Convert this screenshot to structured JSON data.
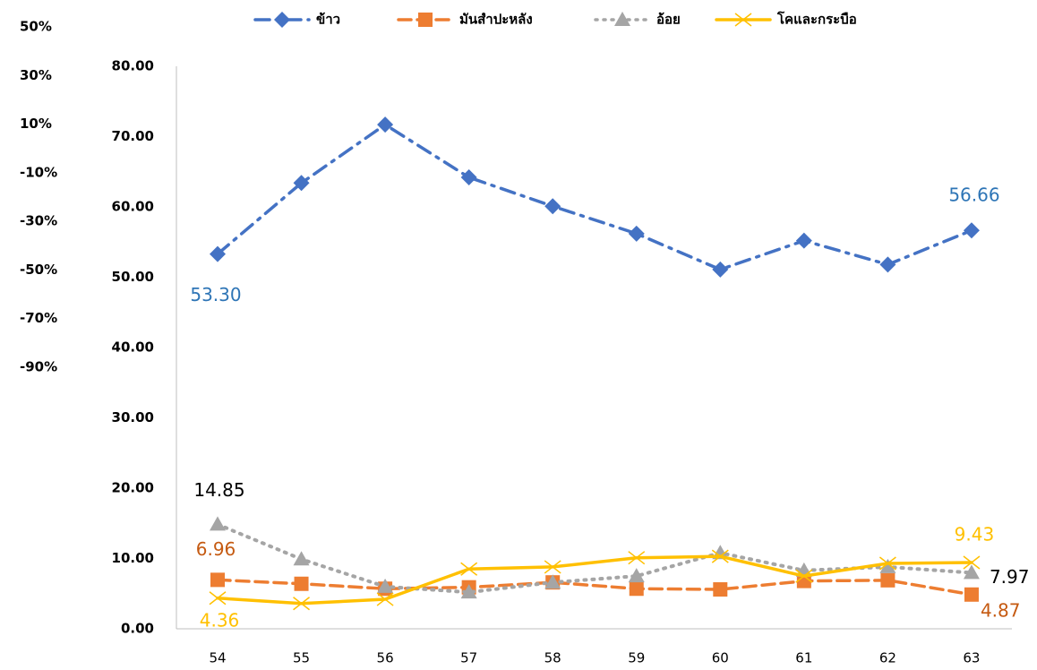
{
  "chart_data": {
    "type": "line",
    "categories": [
      "54",
      "55",
      "56",
      "57",
      "58",
      "59",
      "60",
      "61",
      "62",
      "63"
    ],
    "series": [
      {
        "name": "ข้าว",
        "color": "#4472c4",
        "dash": "dashdot",
        "marker": "diamond",
        "values": [
          53.3,
          63.4,
          71.7,
          64.2,
          60.1,
          56.2,
          51.1,
          55.2,
          51.8,
          56.66
        ],
        "value_labels": [
          "53.30",
          null,
          null,
          null,
          null,
          null,
          null,
          null,
          null,
          "56.66"
        ],
        "label_color": "#2e75b6"
      },
      {
        "name": "มันสำปะหลัง",
        "color": "#ed7d31",
        "dash": "dashed",
        "marker": "square",
        "values": [
          6.96,
          6.4,
          5.7,
          5.9,
          6.6,
          5.7,
          5.6,
          6.8,
          6.9,
          4.87
        ],
        "value_labels": [
          "6.96",
          null,
          null,
          null,
          null,
          null,
          null,
          null,
          null,
          "4.87"
        ],
        "label_color": "#c55a11"
      },
      {
        "name": "อ้อย",
        "color": "#a5a5a5",
        "dash": "dotted",
        "marker": "triangle",
        "values": [
          14.85,
          9.9,
          6.0,
          5.2,
          6.6,
          7.5,
          10.8,
          8.3,
          8.8,
          7.97
        ],
        "value_labels": [
          "14.85",
          null,
          null,
          null,
          null,
          null,
          null,
          null,
          null,
          "7.97"
        ],
        "label_color": "#000000"
      },
      {
        "name": "โคและกระบือ",
        "color": "#ffc000",
        "dash": "solid",
        "marker": "x",
        "values": [
          4.36,
          3.6,
          4.2,
          8.5,
          8.8,
          10.1,
          10.3,
          7.5,
          9.3,
          9.43
        ],
        "value_labels": [
          "4.36",
          null,
          null,
          null,
          null,
          null,
          null,
          null,
          null,
          "9.43"
        ],
        "label_color": "#ffc000"
      }
    ],
    "ylim": [
      0,
      80
    ],
    "yticks": [
      {
        "value": 0,
        "label": "0.00"
      },
      {
        "value": 10,
        "label": "10.00"
      },
      {
        "value": 20,
        "label": "20.00"
      },
      {
        "value": 30,
        "label": "30.00"
      },
      {
        "value": 40,
        "label": "40.00"
      },
      {
        "value": 50,
        "label": "50.00"
      },
      {
        "value": 60,
        "label": "60.00"
      },
      {
        "value": 70,
        "label": "70.00"
      },
      {
        "value": 80,
        "label": "80.00"
      }
    ],
    "y2lim": [
      -90,
      50
    ],
    "y2ticks": [
      {
        "value": 50,
        "label": "50%"
      },
      {
        "value": 30,
        "label": "30%"
      },
      {
        "value": 10,
        "label": "10%"
      },
      {
        "value": -10,
        "label": "-10%"
      },
      {
        "value": -30,
        "label": "-30%"
      },
      {
        "value": -50,
        "label": "-50%"
      },
      {
        "value": -70,
        "label": "-70%"
      },
      {
        "value": -90,
        "label": "-90%"
      }
    ],
    "grid": false,
    "legend": "top"
  }
}
